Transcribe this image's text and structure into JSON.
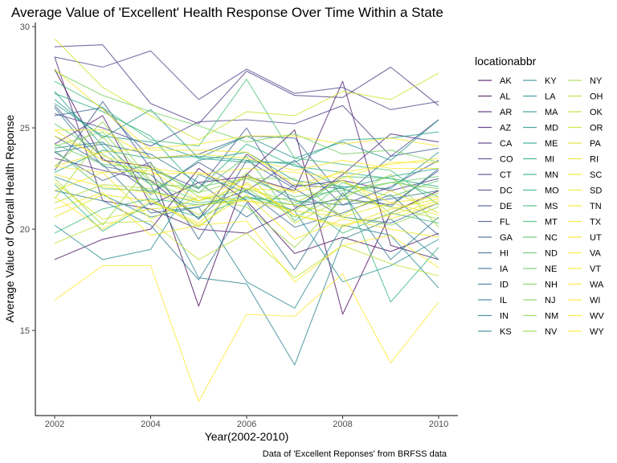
{
  "chart_data": {
    "type": "line",
    "title": "Average Value of 'Excellent' Health Response Over Time Within a State",
    "xlabel": "Year(2002-2010)",
    "ylabel": "Average Value of Overall Health Reponse",
    "caption": "Data of 'Excellent Reponses' from BRFSS data",
    "legend_title": "locationabbr",
    "legend_position": "right",
    "grid": false,
    "xlim": [
      2002,
      2010
    ],
    "ylim": [
      10.8,
      30.2
    ],
    "x_ticks": [
      2002,
      2004,
      2006,
      2008,
      2010
    ],
    "y_ticks": [
      15,
      20,
      25,
      30
    ],
    "x": [
      2002,
      2003,
      2004,
      2005,
      2006,
      2007,
      2008,
      2009,
      2010
    ],
    "series": [
      {
        "name": "AK",
        "color": "#440154",
        "values": [
          27.9,
          23.4,
          23.1,
          16.2,
          22.7,
          24.9,
          15.8,
          20.8,
          21.9
        ]
      },
      {
        "name": "AL",
        "color": "#46075a",
        "values": [
          18.5,
          19.5,
          20.0,
          23.0,
          21.4,
          18.8,
          19.6,
          18.9,
          19.8
        ]
      },
      {
        "name": "AR",
        "color": "#481467",
        "values": [
          24.2,
          25.6,
          21.2,
          22.3,
          22.6,
          21.9,
          27.3,
          19.2,
          18.5
        ]
      },
      {
        "name": "AZ",
        "color": "#481d6f",
        "values": [
          28.5,
          21.4,
          21.0,
          20.0,
          19.8,
          21.0,
          22.7,
          24.7,
          24.3
        ]
      },
      {
        "name": "CA",
        "color": "#482576",
        "values": [
          23.5,
          22.9,
          22.4,
          20.5,
          23.7,
          22.1,
          22.4,
          21.9,
          22.5
        ]
      },
      {
        "name": "CO",
        "color": "#462f7e",
        "values": [
          29.0,
          29.1,
          26.2,
          25.2,
          27.8,
          26.6,
          26.5,
          28.0,
          26.1
        ]
      },
      {
        "name": "CT",
        "color": "#443a83",
        "values": [
          25.7,
          25.0,
          24.1,
          25.3,
          25.4,
          25.2,
          26.1,
          23.6,
          25.4
        ]
      },
      {
        "name": "DC",
        "color": "#414487",
        "values": [
          28.5,
          28.0,
          28.8,
          26.4,
          27.9,
          26.7,
          27.0,
          25.9,
          26.3
        ]
      },
      {
        "name": "DE",
        "color": "#3e4989",
        "values": [
          26.1,
          23.5,
          21.8,
          23.3,
          21.9,
          23.4,
          21.2,
          22.1,
          23.4
        ]
      },
      {
        "name": "FL",
        "color": "#3b518b",
        "values": [
          22.9,
          26.3,
          23.0,
          22.0,
          25.0,
          21.1,
          21.5,
          21.2,
          22.9
        ]
      },
      {
        "name": "GA",
        "color": "#38598c",
        "values": [
          23.8,
          22.4,
          23.3,
          19.5,
          23.4,
          22.0,
          20.6,
          20.3,
          21.3
        ]
      },
      {
        "name": "HI",
        "color": "#355f8d",
        "values": [
          25.6,
          26.0,
          23.5,
          23.7,
          24.6,
          24.5,
          21.6,
          23.6,
          24.0
        ]
      },
      {
        "name": "IA",
        "color": "#31688e",
        "values": [
          24.6,
          23.2,
          20.8,
          21.1,
          21.9,
          20.1,
          20.8,
          21.7,
          19.7
        ]
      },
      {
        "name": "ID",
        "color": "#2e6e8e",
        "values": [
          23.8,
          24.2,
          23.7,
          22.3,
          20.6,
          22.2,
          22.0,
          21.1,
          23.0
        ]
      },
      {
        "name": "IL",
        "color": "#2c738e",
        "values": [
          26.0,
          23.1,
          22.7,
          20.5,
          22.7,
          21.4,
          21.2,
          21.5,
          21.9
        ]
      },
      {
        "name": "IN",
        "color": "#2a788e",
        "values": [
          21.9,
          21.4,
          20.2,
          17.5,
          21.3,
          18.0,
          21.8,
          18.5,
          20.6
        ]
      },
      {
        "name": "KS",
        "color": "#27808e",
        "values": [
          24.0,
          24.3,
          22.2,
          17.6,
          17.3,
          13.3,
          19.5,
          20.5,
          18.5
        ]
      },
      {
        "name": "KY",
        "color": "#25858e",
        "values": [
          22.6,
          21.7,
          20.6,
          21.1,
          17.4,
          16.1,
          20.2,
          19.7,
          17.1
        ]
      },
      {
        "name": "LA",
        "color": "#228b8d",
        "values": [
          20.2,
          18.5,
          19.0,
          22.7,
          21.8,
          20.9,
          17.4,
          18.2,
          19.5
        ]
      },
      {
        "name": "MA",
        "color": "#20918c",
        "values": [
          26.4,
          24.5,
          25.9,
          23.5,
          24.6,
          23.5,
          24.3,
          23.4,
          25.4
        ]
      },
      {
        "name": "MD",
        "color": "#1f968b",
        "values": [
          26.8,
          24.1,
          21.7,
          23.4,
          23.8,
          22.4,
          22.1,
          22.0,
          23.8
        ]
      },
      {
        "name": "ME",
        "color": "#1f9e89",
        "values": [
          26.2,
          24.6,
          24.3,
          23.5,
          23.3,
          23.3,
          24.4,
          24.5,
          24.8
        ]
      },
      {
        "name": "MI",
        "color": "#21a585",
        "values": [
          22.8,
          23.9,
          23.5,
          23.6,
          23.4,
          23.2,
          22.0,
          22.6,
          23.0
        ]
      },
      {
        "name": "MN",
        "color": "#25ab82",
        "values": [
          26.7,
          25.8,
          24.6,
          22.0,
          24.2,
          23.1,
          22.8,
          22.5,
          22.1
        ]
      },
      {
        "name": "MO",
        "color": "#2db27d",
        "values": [
          22.2,
          19.9,
          21.3,
          20.6,
          21.6,
          21.2,
          22.1,
          16.4,
          19.1
        ]
      },
      {
        "name": "MS",
        "color": "#37b878",
        "values": [
          19.8,
          21.0,
          21.5,
          21.2,
          21.5,
          21.5,
          19.8,
          20.8,
          20.3
        ]
      },
      {
        "name": "MT",
        "color": "#3fbc73",
        "values": [
          27.3,
          26.0,
          24.4,
          24.1,
          27.4,
          23.5,
          23.2,
          22.9,
          21.2
        ]
      },
      {
        "name": "NC",
        "color": "#4cc26c",
        "values": [
          23.9,
          22.0,
          21.9,
          21.3,
          21.6,
          20.9,
          22.6,
          22.5,
          21.6
        ]
      },
      {
        "name": "ND",
        "color": "#56c667",
        "values": [
          24.2,
          23.2,
          23.0,
          21.8,
          23.6,
          20.4,
          22.3,
          21.6,
          22.4
        ]
      },
      {
        "name": "NE",
        "color": "#63cb5f",
        "values": [
          25.2,
          23.7,
          22.2,
          22.1,
          22.5,
          21.6,
          21.9,
          22.3,
          22.6
        ]
      },
      {
        "name": "NH",
        "color": "#6fcf57",
        "values": [
          27.8,
          26.6,
          25.8,
          25.1,
          24.3,
          24.7,
          23.7,
          23.9,
          23.3
        ]
      },
      {
        "name": "NJ",
        "color": "#7ad151",
        "values": [
          24.1,
          24.8,
          22.3,
          21.4,
          22.0,
          20.6,
          21.7,
          22.3,
          22.0
        ]
      },
      {
        "name": "NM",
        "color": "#89d548",
        "values": [
          23.1,
          25.3,
          22.4,
          21.8,
          22.5,
          22.5,
          20.6,
          20.2,
          21.1
        ]
      },
      {
        "name": "NV",
        "color": "#95d840",
        "values": [
          22.5,
          20.2,
          23.2,
          21.6,
          21.1,
          19.1,
          21.5,
          22.7,
          20.1
        ]
      },
      {
        "name": "NY",
        "color": "#a2da37",
        "values": [
          21.5,
          24.6,
          21.5,
          20.1,
          22.0,
          21.3,
          22.4,
          20.8,
          21.8
        ]
      },
      {
        "name": "OH",
        "color": "#b0dd2f",
        "values": [
          21.3,
          22.2,
          22.0,
          20.7,
          22.8,
          20.3,
          21.5,
          21.1,
          20.5
        ]
      },
      {
        "name": "OK",
        "color": "#bddf26",
        "values": [
          19.3,
          20.3,
          20.4,
          18.5,
          19.8,
          17.6,
          19.2,
          18.3,
          17.7
        ]
      },
      {
        "name": "OR",
        "color": "#cae11f",
        "values": [
          29.4,
          27.0,
          25.6,
          24.4,
          25.8,
          25.6,
          26.8,
          26.4,
          27.7
        ]
      },
      {
        "name": "PA",
        "color": "#d8e219",
        "values": [
          22.3,
          20.5,
          21.0,
          21.2,
          21.4,
          21.2,
          20.7,
          21.9,
          20.8
        ]
      },
      {
        "name": "RI",
        "color": "#e5e419",
        "values": [
          20.6,
          21.7,
          21.4,
          20.3,
          22.3,
          20.7,
          20.1,
          21.0,
          21.5
        ]
      },
      {
        "name": "SC",
        "color": "#ede51b",
        "values": [
          21.9,
          22.8,
          20.5,
          21.6,
          21.4,
          20.9,
          20.6,
          21.3,
          20.7
        ]
      },
      {
        "name": "SD",
        "color": "#f1e51d",
        "values": [
          24.9,
          23.4,
          22.7,
          22.8,
          22.0,
          21.9,
          22.9,
          20.5,
          21.3
        ]
      },
      {
        "name": "TN",
        "color": "#f4e61e",
        "values": [
          21.0,
          21.8,
          19.7,
          20.2,
          21.7,
          19.5,
          20.5,
          20.0,
          19.6
        ]
      },
      {
        "name": "TX",
        "color": "#f6e620",
        "values": [
          22.7,
          22.1,
          21.8,
          21.4,
          22.2,
          20.7,
          20.2,
          20.7,
          21.4
        ]
      },
      {
        "name": "UT",
        "color": "#f8e621",
        "values": [
          23.1,
          23.8,
          24.0,
          24.2,
          24.6,
          24.6,
          24.2,
          24.5,
          24.1
        ]
      },
      {
        "name": "VA",
        "color": "#f9e721",
        "values": [
          24.6,
          23.6,
          23.0,
          22.7,
          23.0,
          22.8,
          22.5,
          23.3,
          23.3
        ]
      },
      {
        "name": "VT",
        "color": "#fae722",
        "values": [
          27.9,
          25.9,
          23.9,
          23.9,
          23.8,
          22.2,
          22.8,
          23.2,
          23.5
        ]
      },
      {
        "name": "WA",
        "color": "#fbe723",
        "values": [
          24.9,
          24.9,
          23.5,
          23.7,
          23.5,
          22.9,
          23.4,
          23.0,
          23.0
        ]
      },
      {
        "name": "WI",
        "color": "#fce724",
        "values": [
          23.1,
          22.8,
          22.9,
          21.4,
          22.6,
          21.8,
          22.4,
          21.3,
          21.6
        ]
      },
      {
        "name": "WV",
        "color": "#fde725",
        "values": [
          16.5,
          18.2,
          18.2,
          11.5,
          15.8,
          15.7,
          17.8,
          13.4,
          16.4
        ]
      },
      {
        "name": "WY",
        "color": "#fde725",
        "values": [
          21.6,
          20.0,
          21.4,
          20.2,
          20.4,
          17.4,
          19.2,
          19.7,
          18.1
        ]
      }
    ]
  }
}
